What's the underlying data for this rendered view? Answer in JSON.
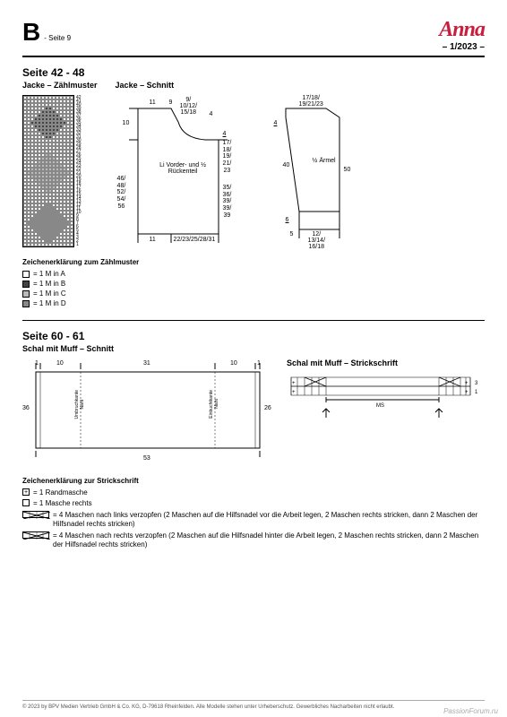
{
  "header": {
    "letter": "B",
    "page_ref": "- Seite 9",
    "brand": "Anna",
    "issue": "– 1/2023 –"
  },
  "section1": {
    "title": "Seite 42 - 48",
    "sub_left": "Jacke – Zählmuster",
    "sub_right": "Jacke – Schnitt",
    "body_label": "Li Vorder- und ½ Rückenteil",
    "sleeve_label": "½ Ärmel",
    "dims": {
      "top_9": "9/\n10/12/\n15/18",
      "top_11": "11",
      "top_9b": "9",
      "top_4": "4",
      "left_10": "10",
      "right_4": "4",
      "right_side": "17/\n18/\n19/\n21/\n23",
      "left_side": "46/\n48/\n52/\n54/\n56",
      "right_lower": "35/\n36/\n39/\n39/\n39",
      "bottom_11": "11",
      "bottom_row": "22/23/25/28/31",
      "sleeve_top": "17/18/\n19/21/23",
      "sleeve_4": "4",
      "sleeve_40": "40",
      "sleeve_50": "50",
      "sleeve_6": "6",
      "sleeve_5": "5",
      "sleeve_bottom": "12/\n13/14/\n16/18"
    },
    "legend_title": "Zeichenerklärung zum Zählmuster",
    "legend": [
      {
        "sym": "a",
        "text": "= 1 M in A"
      },
      {
        "sym": "b",
        "text": "= 1 M in B"
      },
      {
        "sym": "c",
        "text": "= 1 M in C"
      },
      {
        "sym": "d",
        "text": "= 1 M in D"
      }
    ]
  },
  "section2": {
    "title": "Seite 60 - 61",
    "sub_left": "Schal mit Muff – Schnitt",
    "sub_right": "Schal mit Muff – Strickschrift",
    "scarf_dims": {
      "top_l": "1",
      "top_10": "10",
      "top_31": "31",
      "top_10b": "10",
      "top_r": "1",
      "left_36": "36",
      "right_26": "26",
      "bottom_53": "53",
      "inner_note1": "Umbruchkante\nNaht",
      "inner_note2": "Einbuchtkante\nNaht"
    },
    "strick": {
      "ms": "MS",
      "row3": "3",
      "row1": "1"
    },
    "legend_title": "Zeichenerklärung zur Strickschrift",
    "legend2": [
      {
        "sym": "cross",
        "text": "= 1 Randmasche"
      },
      {
        "sym": "blank",
        "text": "= 1 Masche rechts"
      },
      {
        "sym": "cable-l",
        "text": "= 4 Maschen nach links verzopfen (2 Maschen auf die Hilfsnadel vor die Arbeit legen, 2 Maschen rechts stricken, dann 2 Maschen der Hilfsnadel rechts stricken)"
      },
      {
        "sym": "cable-r",
        "text": "= 4 Maschen nach rechts verzopfen (2 Maschen auf die Hilfsnadel hinter die Arbeit legen, 2 Maschen rechts stricken, dann 2 Maschen der Hilfsnadel rechts stricken)"
      }
    ]
  },
  "footer": "© 2023 by BPV Medien Vertrieb GmbH & Co. KG, D-79618 Rheinfelden. Alle Modelle stehen unter Urheberschutz. Gewerbliches Nacharbeiten nicht erlaubt.",
  "watermark": "PassionForum.ru",
  "colors": {
    "brand": "#c81e3c",
    "grid_a": "#ffffff",
    "grid_b": "#444444",
    "grid_c": "#bbbbbb",
    "grid_d": "#888888"
  }
}
